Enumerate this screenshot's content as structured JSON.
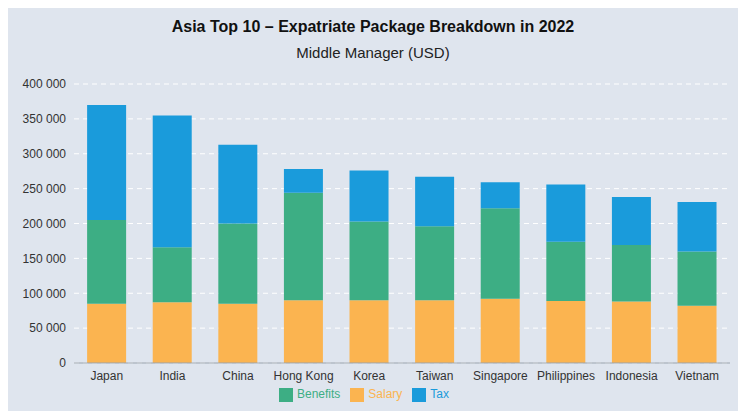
{
  "chart_data": {
    "type": "bar",
    "title": "Asia Top 10 – Expatriate Package Breakdown in 2022",
    "subtitle": "Middle Manager (USD)",
    "categories": [
      "Japan",
      "India",
      "China",
      "Hong Kong",
      "Korea",
      "Taiwan",
      "Singapore",
      "Philippines",
      "Indonesia",
      "Vietnam"
    ],
    "series": [
      {
        "name": "Salary",
        "color": "#fbb450",
        "values": [
          85000,
          87000,
          85000,
          90000,
          90000,
          90000,
          92000,
          89000,
          88000,
          82000
        ]
      },
      {
        "name": "Benefits",
        "color": "#3dae84",
        "values": [
          120000,
          79000,
          115000,
          154000,
          113000,
          106000,
          130000,
          85000,
          81000,
          78000
        ]
      },
      {
        "name": "Tax",
        "color": "#1a9bdb",
        "values": [
          165000,
          189000,
          113000,
          34000,
          73000,
          71000,
          37000,
          82000,
          69000,
          71000
        ]
      }
    ],
    "stacked": true,
    "ylim": [
      0,
      400000
    ],
    "yticks": [
      0,
      {
        "value": 50000,
        "label": "50 000"
      },
      {
        "value": 100000,
        "label": "100 000"
      },
      {
        "value": 150000,
        "label": "150 000"
      },
      {
        "value": 200000,
        "label": "200 000"
      },
      {
        "value": 250000,
        "label": "250 000"
      },
      {
        "value": 300000,
        "label": "300 000"
      },
      {
        "value": 350000,
        "label": "350 000"
      },
      {
        "value": 400000,
        "label": "400 000"
      }
    ],
    "grid": true,
    "legend": "bottom"
  }
}
